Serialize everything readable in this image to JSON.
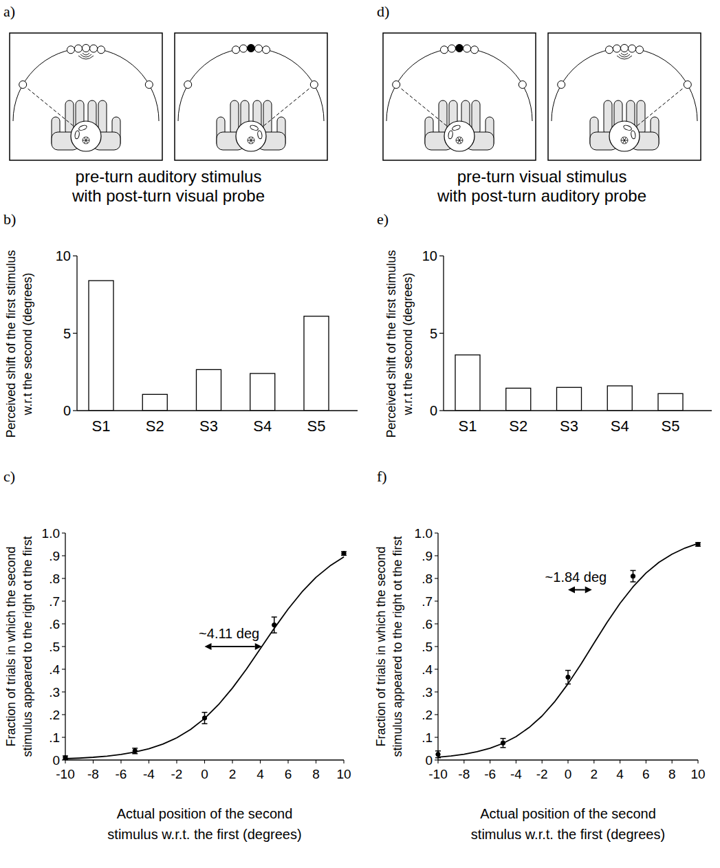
{
  "diagrams": [
    {
      "letter": "a)",
      "caption": [
        "pre-turn auditory stimulus",
        "with post-turn visual probe"
      ]
    },
    {
      "letter": "d)",
      "caption": [
        "pre-turn visual stimulus",
        "with post-turn auditory probe"
      ]
    }
  ],
  "chart_data": [
    {
      "letter": "b)",
      "type": "bar",
      "y_label": [
        "Perceived shift of the first stimulus",
        "w.r.t the second (degrees)"
      ],
      "categories": [
        "S1",
        "S2",
        "S3",
        "S4",
        "S5"
      ],
      "values": [
        8.4,
        1.05,
        2.65,
        2.4,
        6.1
      ],
      "color": "#ffffff",
      "ylim": [
        0,
        10
      ],
      "yticks": [
        0,
        5,
        10
      ]
    },
    {
      "letter": "e)",
      "type": "bar",
      "y_label": [
        "Perceived shift of the first stimulus",
        "w.r.t the second (degrees)"
      ],
      "categories": [
        "S1",
        "S2",
        "S3",
        "S4",
        "S5"
      ],
      "values": [
        3.6,
        1.45,
        1.5,
        1.6,
        1.1
      ],
      "color": "#ffffff",
      "ylim": [
        0,
        10
      ],
      "yticks": [
        0,
        5,
        10
      ]
    },
    {
      "letter": "c)",
      "type": "line",
      "x_label": [
        "Actual position of the second",
        "stimulus w.r.t. the first (degrees)"
      ],
      "y_label": [
        "Fraction of trials in which the second",
        "stimulus appeared to the right ot the first"
      ],
      "xlim": [
        -10,
        10
      ],
      "ylim": [
        0,
        1
      ],
      "xticks": [
        -10,
        -8,
        -6,
        -4,
        -2,
        0,
        2,
        4,
        6,
        8,
        10
      ],
      "yticks": [
        0,
        {
          "value": 0.1,
          "label": ".1"
        },
        {
          "value": 0.2,
          "label": ".2"
        },
        {
          "value": 0.3,
          "label": ".3"
        },
        {
          "value": 0.4,
          "label": ".4"
        },
        {
          "value": 0.5,
          "label": ".5"
        },
        {
          "value": 0.6,
          "label": ".6"
        },
        {
          "value": 0.7,
          "label": ".7"
        },
        {
          "value": 0.8,
          "label": ".8"
        },
        {
          "value": 0.9,
          "label": ".9"
        },
        {
          "value": 1,
          "label": "1.0"
        }
      ],
      "series": [
        {
          "type": "line",
          "color": "#000000",
          "line_style": "solid",
          "x": [
            -10,
            -9,
            -8,
            -7,
            -6,
            -5,
            -4,
            -3,
            -2,
            -1,
            0,
            1,
            2,
            3,
            4,
            5,
            6,
            7,
            8,
            9,
            10
          ],
          "values": [
            0.006,
            0.0084,
            0.0121,
            0.0173,
            0.0247,
            0.0351,
            0.0498,
            0.07,
            0.0978,
            0.135,
            0.183,
            0.244,
            0.317,
            0.4,
            0.49,
            0.58,
            0.665,
            0.741,
            0.805,
            0.855,
            0.895
          ]
        },
        {
          "type": "scatter",
          "color": "#000000",
          "marker": "circle",
          "x": [
            -10,
            -5,
            0,
            5,
            10
          ],
          "values": [
            0.01,
            0.04,
            0.185,
            0.595,
            0.91
          ],
          "errors": [
            0.008,
            0.012,
            0.025,
            0.035,
            0.008
          ]
        }
      ],
      "annotations": [
        {
          "text": "~4.11 deg",
          "x_from": 0,
          "x_to": 4.11,
          "y": 0.5
        }
      ]
    },
    {
      "letter": "f)",
      "type": "line",
      "x_label": [
        "Actual position of the second",
        "stimulus w.r.t. the first (degrees)"
      ],
      "y_label": [
        "Fraction of trials in which the second",
        "stimulus appeared to the right ot the first"
      ],
      "xlim": [
        -10,
        10
      ],
      "ylim": [
        0,
        1
      ],
      "xticks": [
        -10,
        -8,
        -6,
        -4,
        -2,
        0,
        2,
        4,
        6,
        8,
        10
      ],
      "yticks": [
        0,
        {
          "value": 0.1,
          "label": ".1"
        },
        {
          "value": 0.2,
          "label": ".2"
        },
        {
          "value": 0.3,
          "label": ".3"
        },
        {
          "value": 0.4,
          "label": ".4"
        },
        {
          "value": 0.5,
          "label": ".5"
        },
        {
          "value": 0.6,
          "label": ".6"
        },
        {
          "value": 0.7,
          "label": ".7"
        },
        {
          "value": 0.8,
          "label": ".8"
        },
        {
          "value": 0.9,
          "label": ".9"
        },
        {
          "value": 1,
          "label": "1.0"
        }
      ],
      "series": [
        {
          "type": "line",
          "color": "#000000",
          "line_style": "solid",
          "x": [
            -10,
            -9,
            -8,
            -7,
            -6,
            -5,
            -4,
            -3,
            -2,
            -1,
            0,
            1,
            2,
            3,
            4,
            5,
            6,
            7,
            8,
            9,
            10
          ],
          "values": [
            0.0123,
            0.0177,
            0.0254,
            0.0365,
            0.052,
            0.0735,
            0.103,
            0.143,
            0.194,
            0.259,
            0.336,
            0.423,
            0.515,
            0.606,
            0.69,
            0.763,
            0.824,
            0.871,
            0.907,
            0.934,
            0.954
          ]
        },
        {
          "type": "scatter",
          "color": "#000000",
          "marker": "circle",
          "x": [
            -10,
            -5,
            0,
            5,
            10
          ],
          "values": [
            0.025,
            0.075,
            0.365,
            0.81,
            0.95
          ],
          "errors": [
            0.015,
            0.02,
            0.03,
            0.025,
            0.008
          ]
        }
      ],
      "annotations": [
        {
          "text": "~1.84 deg",
          "x_from": 0,
          "x_to": 1.84,
          "y": 0.75
        }
      ]
    }
  ]
}
